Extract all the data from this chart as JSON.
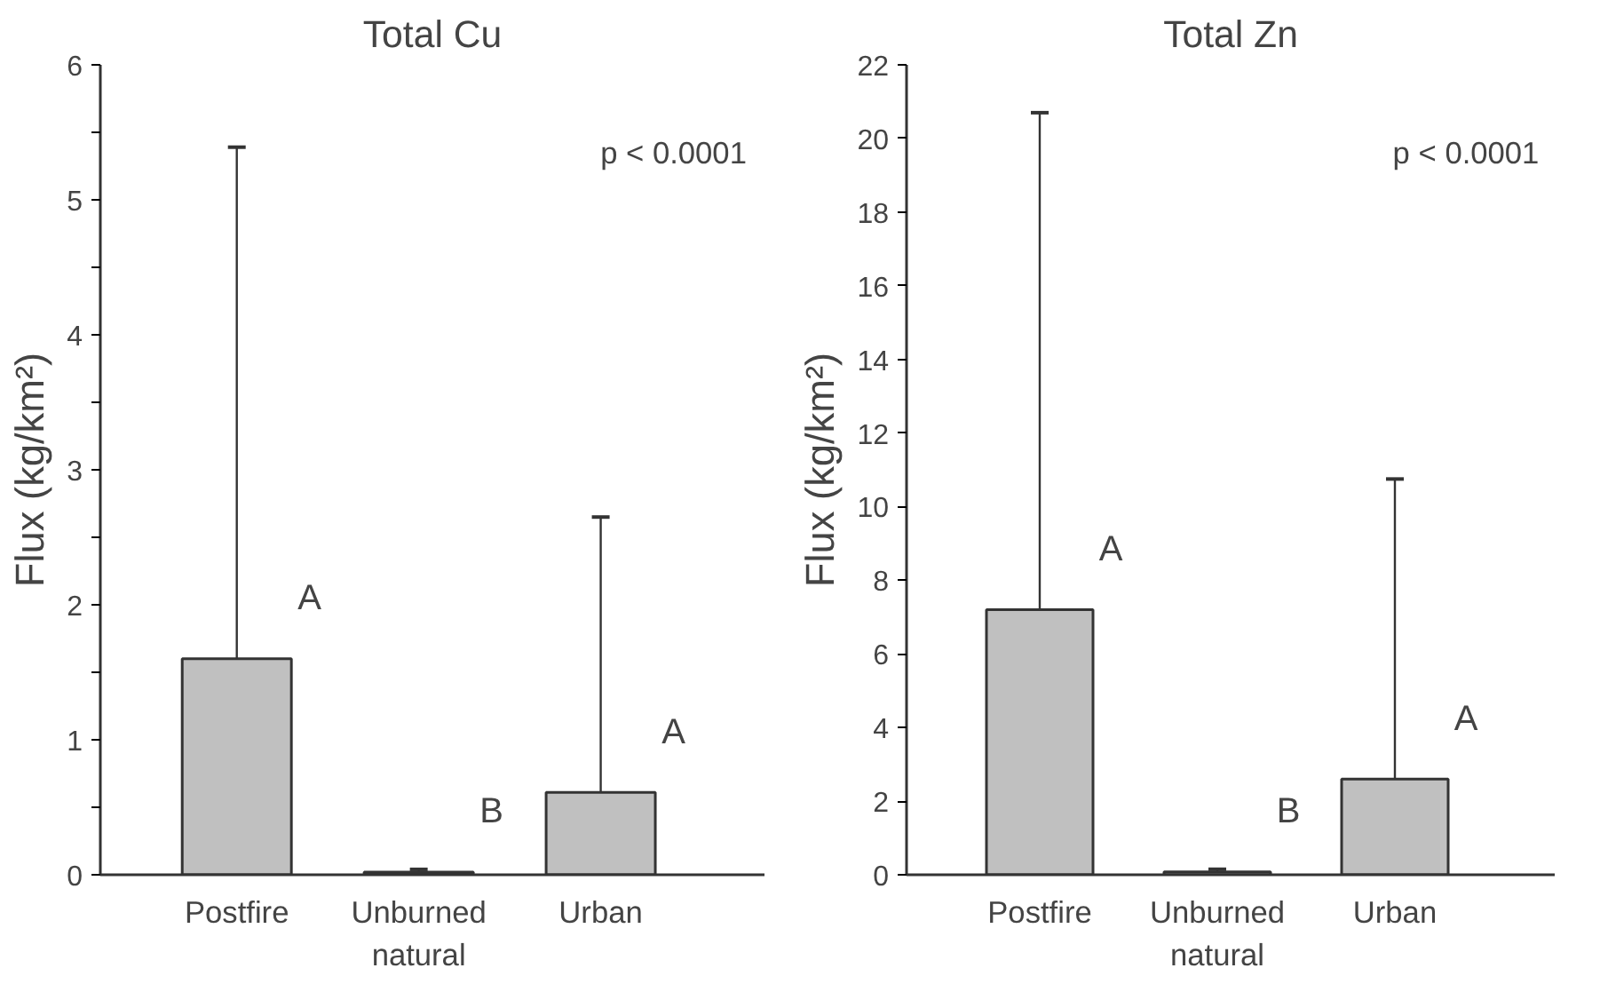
{
  "chart_data": [
    {
      "type": "bar",
      "title": "Total Cu",
      "ylabel": "Flux (kg/km²)",
      "categories": [
        "Postfire",
        "Unburned\nnatural",
        "Urban"
      ],
      "values": [
        1.6,
        0.02,
        0.61
      ],
      "color": "#c0c0c0",
      "errors": [
        [
          1.6,
          5.39
        ],
        [
          0.02,
          0.04
        ],
        [
          0.61,
          2.65
        ]
      ],
      "ylim": [
        0,
        6
      ],
      "yticks": [
        0,
        {
          "value": 0.5,
          "label": null
        },
        1,
        {
          "value": 1.5,
          "label": null
        },
        2,
        {
          "value": 2.5,
          "label": null
        },
        3,
        {
          "value": 3.5,
          "label": null
        },
        4,
        {
          "value": 4.5,
          "label": null
        },
        5,
        {
          "value": 5.5,
          "label": null
        },
        6
      ],
      "annotations": [
        "p < 0.0001",
        "A",
        "B",
        "A"
      ]
    },
    {
      "type": "bar",
      "title": "Total Zn",
      "ylabel": "Flux (kg/km²)",
      "categories": [
        "Postfire",
        "Unburned\nnatural",
        "Urban"
      ],
      "values": [
        7.2,
        0.08,
        2.6
      ],
      "color": "#c0c0c0",
      "errors": [
        [
          7.2,
          20.7
        ],
        [
          0.08,
          0.15
        ],
        [
          2.6,
          10.75
        ]
      ],
      "ylim": [
        0,
        22
      ],
      "yticks": [
        0,
        2,
        4,
        6,
        8,
        10,
        12,
        14,
        16,
        18,
        20,
        22
      ],
      "annotations": [
        "p < 0.0001",
        "A",
        "B",
        "A"
      ]
    }
  ]
}
